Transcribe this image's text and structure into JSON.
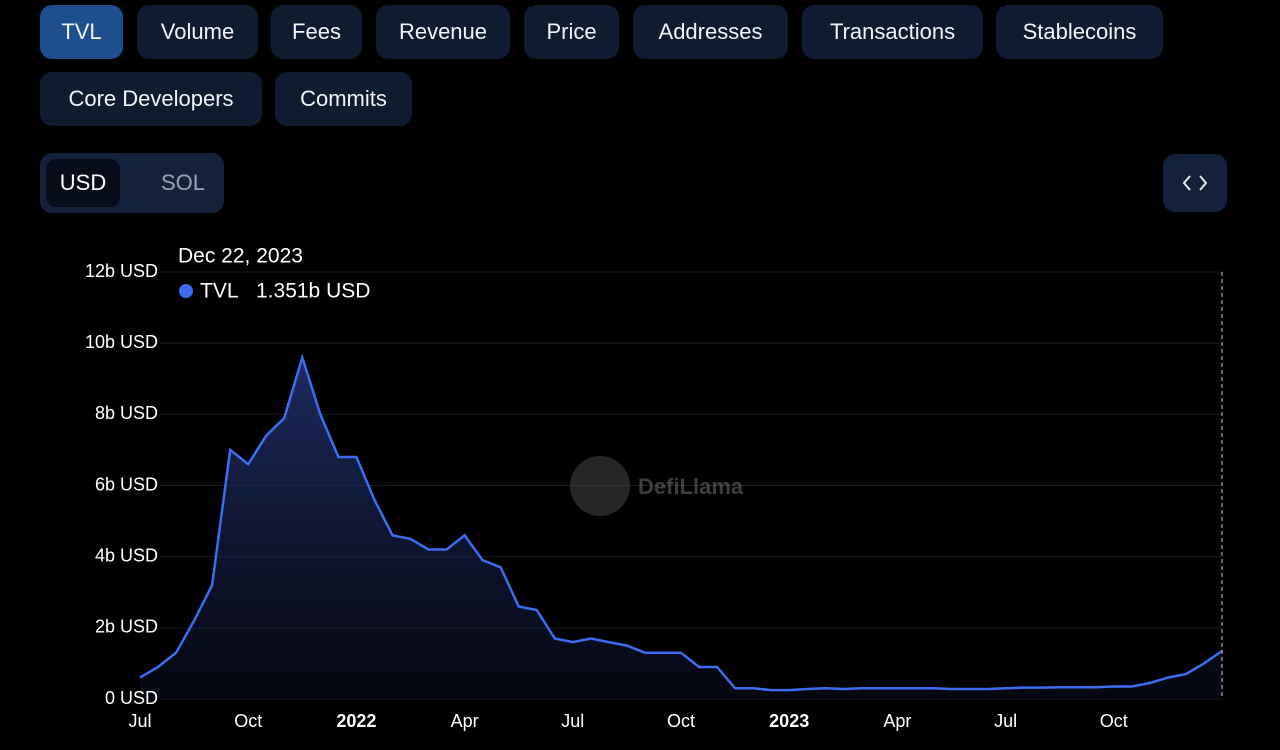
{
  "tabs": [
    "TVL",
    "Volume",
    "Fees",
    "Revenue",
    "Price",
    "Addresses",
    "Transactions",
    "Stablecoins",
    "Core Developers",
    "Commits"
  ],
  "active_tab": "TVL",
  "currency_toggle": [
    "USD",
    "SOL"
  ],
  "chart_data": {
    "type": "area",
    "watermark": "DefiLlama",
    "tooltip_date": "Dec 22, 2023",
    "tooltip_value": "1.351b USD",
    "categories": [
      "Jul",
      null,
      null,
      null,
      null,
      null,
      "Oct",
      null,
      null,
      null,
      null,
      null,
      "2022",
      null,
      null,
      null,
      null,
      null,
      "Apr",
      null,
      null,
      null,
      null,
      null,
      "Jul",
      null,
      null,
      null,
      null,
      null,
      "Oct",
      null,
      null,
      null,
      null,
      null,
      "2023",
      null,
      null,
      null,
      null,
      null,
      "Apr",
      null,
      null,
      null,
      null,
      null,
      "Jul",
      null,
      null,
      null,
      null,
      null,
      "Oct",
      null,
      null,
      null,
      null,
      null,
      null
    ],
    "series": [
      {
        "name": "TVL",
        "color": "#3d6cf0",
        "values": [
          0.6,
          0.9,
          1.3,
          2.2,
          3.2,
          7.0,
          6.6,
          7.4,
          7.9,
          9.6,
          8.0,
          6.8,
          6.8,
          5.6,
          4.6,
          4.5,
          4.2,
          4.2,
          4.6,
          3.9,
          3.7,
          2.6,
          2.5,
          1.7,
          1.6,
          1.7,
          1.6,
          1.5,
          1.3,
          1.3,
          1.3,
          0.9,
          0.9,
          0.3,
          0.3,
          0.25,
          0.25,
          0.28,
          0.3,
          0.28,
          0.3,
          0.3,
          0.3,
          0.3,
          0.3,
          0.28,
          0.28,
          0.28,
          0.3,
          0.32,
          0.32,
          0.33,
          0.33,
          0.33,
          0.35,
          0.35,
          0.45,
          0.6,
          0.7,
          1.0,
          1.35
        ]
      }
    ],
    "ylim": [
      0,
      12
    ],
    "yticks": [
      {
        "value": 0,
        "label": "0 USD"
      },
      {
        "value": 2,
        "label": "2b USD"
      },
      {
        "value": 4,
        "label": "4b USD"
      },
      {
        "value": 6,
        "label": "6b USD"
      },
      {
        "value": 8,
        "label": "8b USD"
      },
      {
        "value": 10,
        "label": "10b USD"
      },
      {
        "value": 12,
        "label": "12b USD"
      }
    ],
    "grid": true
  }
}
